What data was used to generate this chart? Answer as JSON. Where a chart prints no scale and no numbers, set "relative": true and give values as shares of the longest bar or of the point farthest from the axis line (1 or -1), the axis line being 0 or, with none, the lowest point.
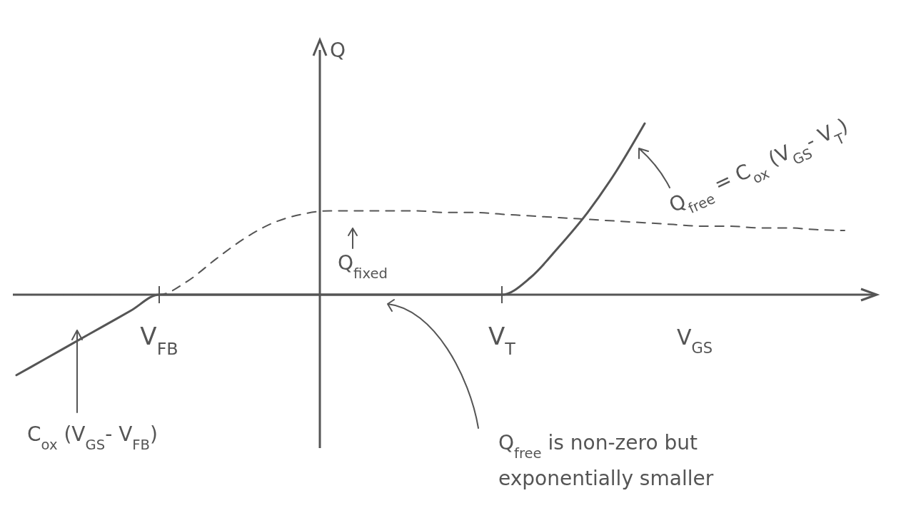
{
  "chart_data": {
    "type": "line",
    "relative": true,
    "xlabel": "V$_{GS}$",
    "ylabel": "Q",
    "categories": [
      null,
      null,
      null,
      null,
      null,
      "V$_{FB}$",
      null,
      null,
      null,
      null,
      null,
      null,
      null,
      null,
      null,
      null,
      null,
      "V$_{T}$",
      null,
      null,
      null,
      null,
      null,
      null,
      null,
      null,
      null,
      null,
      null,
      null
    ],
    "series": [
      {
        "color": "#555555",
        "line_style": "solid",
        "values": [
          -0.47,
          -0.376,
          -0.282,
          -0.188,
          -0.094,
          0,
          0,
          0,
          0,
          0,
          0,
          0,
          0,
          0,
          0,
          0,
          0,
          0,
          0.1,
          0.28,
          0.48,
          0.72,
          1,
          null,
          null,
          null,
          null,
          null,
          null,
          null
        ]
      },
      {
        "color": "#555555",
        "line_style": "dashed",
        "values": [
          0,
          0,
          0,
          0,
          0,
          0,
          0.08,
          0.21,
          0.33,
          0.42,
          0.47,
          0.49,
          0.49,
          0.49,
          0.49,
          0.48,
          0.48,
          0.47,
          0.46,
          0.45,
          0.44,
          0.43,
          0.42,
          0.41,
          0.4,
          0.4,
          0.39,
          0.39,
          0.38,
          0.375
        ]
      }
    ],
    "annotations": [
      "Q$_{free}$ = C$_{ox}$ (V$_{GS}$- V$_{T}$)",
      "Q$_{fixed}$",
      "C$_{ox}$ (V$_{GS}$- V$_{FB}$)",
      "Q$_{free}$ is non-zero but exponentially smaller"
    ]
  }
}
